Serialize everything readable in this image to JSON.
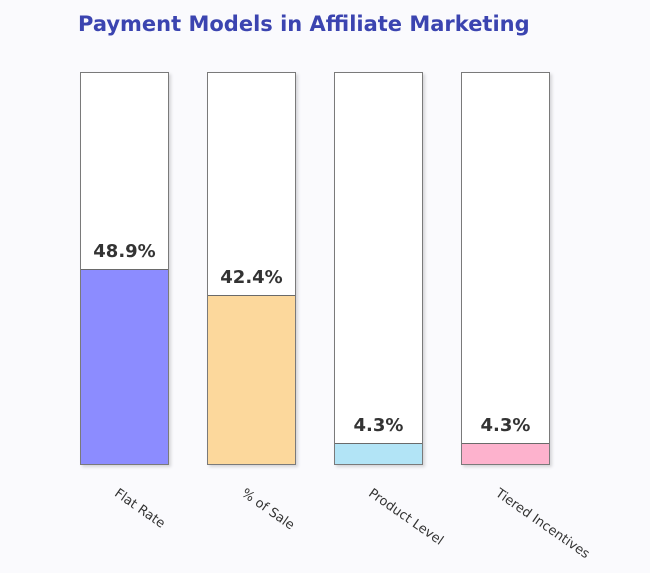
{
  "chart_data": {
    "type": "bar",
    "title": "Payment Models in Affiliate Marketing",
    "categories": [
      "Flat Rate",
      "% of Sale",
      "Product Level",
      "Tiered Incentives"
    ],
    "values": [
      48.9,
      42.4,
      4.3,
      4.3
    ],
    "labels": [
      "48.9%",
      "42.4%",
      "4.3%",
      "4.3%"
    ],
    "colors": [
      "#8c8cff",
      "#fcd89c",
      "#b2e4f6",
      "#fdb2cd"
    ],
    "xlabel": "",
    "ylabel": "",
    "ylim": [
      0,
      100
    ],
    "grid": false,
    "legend": "none"
  }
}
